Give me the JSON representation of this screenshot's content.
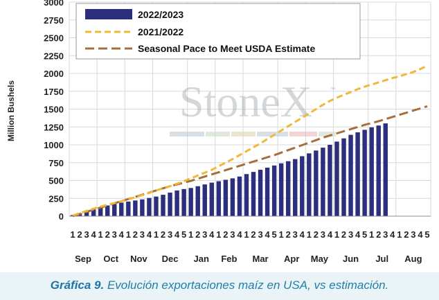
{
  "chart_data": {
    "type": "bar",
    "ylabel": "Million Bushels",
    "ylim": [
      0,
      3000
    ],
    "yticks": [
      0,
      250,
      500,
      750,
      1000,
      1250,
      1500,
      1750,
      2000,
      2250,
      2500,
      2750,
      3000
    ],
    "grid": true,
    "legend_position": "top-left",
    "months": [
      {
        "label": "Sep",
        "weeks": 4
      },
      {
        "label": "Oct",
        "weeks": 4
      },
      {
        "label": "Nov",
        "weeks": 4
      },
      {
        "label": "Dec",
        "weeks": 5
      },
      {
        "label": "Jan",
        "weeks": 4
      },
      {
        "label": "Feb",
        "weeks": 4
      },
      {
        "label": "Mar",
        "weeks": 5
      },
      {
        "label": "Apr",
        "weeks": 4
      },
      {
        "label": "May",
        "weeks": 4
      },
      {
        "label": "Jun",
        "weeks": 5
      },
      {
        "label": "Jul",
        "weeks": 4
      },
      {
        "label": "Aug",
        "weeks": 5
      }
    ],
    "week_labels": [
      "1",
      "2",
      "3",
      "4",
      "1",
      "2",
      "3",
      "4",
      "1",
      "2",
      "3",
      "4",
      "1",
      "2",
      "3",
      "4",
      "5",
      "1",
      "2",
      "3",
      "4",
      "1",
      "2",
      "3",
      "4",
      "1",
      "2",
      "3",
      "4",
      "5",
      "1",
      "2",
      "3",
      "4",
      "1",
      "2",
      "3",
      "4",
      "1",
      "2",
      "3",
      "4",
      "5",
      "1",
      "2",
      "3",
      "4",
      "1",
      "2",
      "3",
      "4",
      "5"
    ],
    "series": [
      {
        "name": "2022/2023",
        "kind": "bar",
        "color": "#2b2f7e",
        "values": [
          15,
          40,
          65,
          95,
          125,
          150,
          170,
          190,
          205,
          220,
          235,
          255,
          275,
          300,
          330,
          360,
          380,
          395,
          420,
          445,
          470,
          490,
          510,
          530,
          555,
          590,
          620,
          650,
          680,
          710,
          740,
          770,
          800,
          840,
          880,
          920,
          960,
          1000,
          1045,
          1090,
          1140,
          1175,
          1210,
          1245,
          1270,
          1300
        ]
      },
      {
        "name": "2021/2022",
        "kind": "line",
        "style": "dashed",
        "color": "#f0b83a",
        "values": [
          10,
          40,
          75,
          105,
          135,
          160,
          185,
          210,
          235,
          265,
          295,
          325,
          360,
          390,
          420,
          455,
          490,
          530,
          570,
          610,
          650,
          700,
          750,
          800,
          855,
          910,
          965,
          1020,
          1080,
          1140,
          1200,
          1260,
          1320,
          1380,
          1440,
          1500,
          1560,
          1615,
          1660,
          1700,
          1740,
          1780,
          1815,
          1845,
          1875,
          1905,
          1935,
          1960,
          1990,
          2020,
          2060,
          2110
        ]
      },
      {
        "name": "Seasonal Pace to Meet USDA Estimate",
        "kind": "line",
        "style": "dashed",
        "color": "#a66e3c",
        "values": [
          0,
          30,
          60,
          90,
          120,
          150,
          180,
          210,
          240,
          270,
          300,
          330,
          360,
          390,
          420,
          445,
          470,
          495,
          525,
          555,
          585,
          615,
          645,
          675,
          705,
          735,
          765,
          795,
          825,
          855,
          890,
          925,
          960,
          995,
          1030,
          1065,
          1100,
          1130,
          1160,
          1190,
          1220,
          1250,
          1280,
          1305,
          1330,
          1360,
          1390,
          1420,
          1450,
          1480,
          1510,
          1540
        ]
      }
    ]
  },
  "watermark": {
    "text": "StoneX",
    "trademark": "™"
  },
  "caption": {
    "lead": "Gráfica 9.",
    "text": " Evolución exportaciones maíz en USA, vs estimación."
  }
}
